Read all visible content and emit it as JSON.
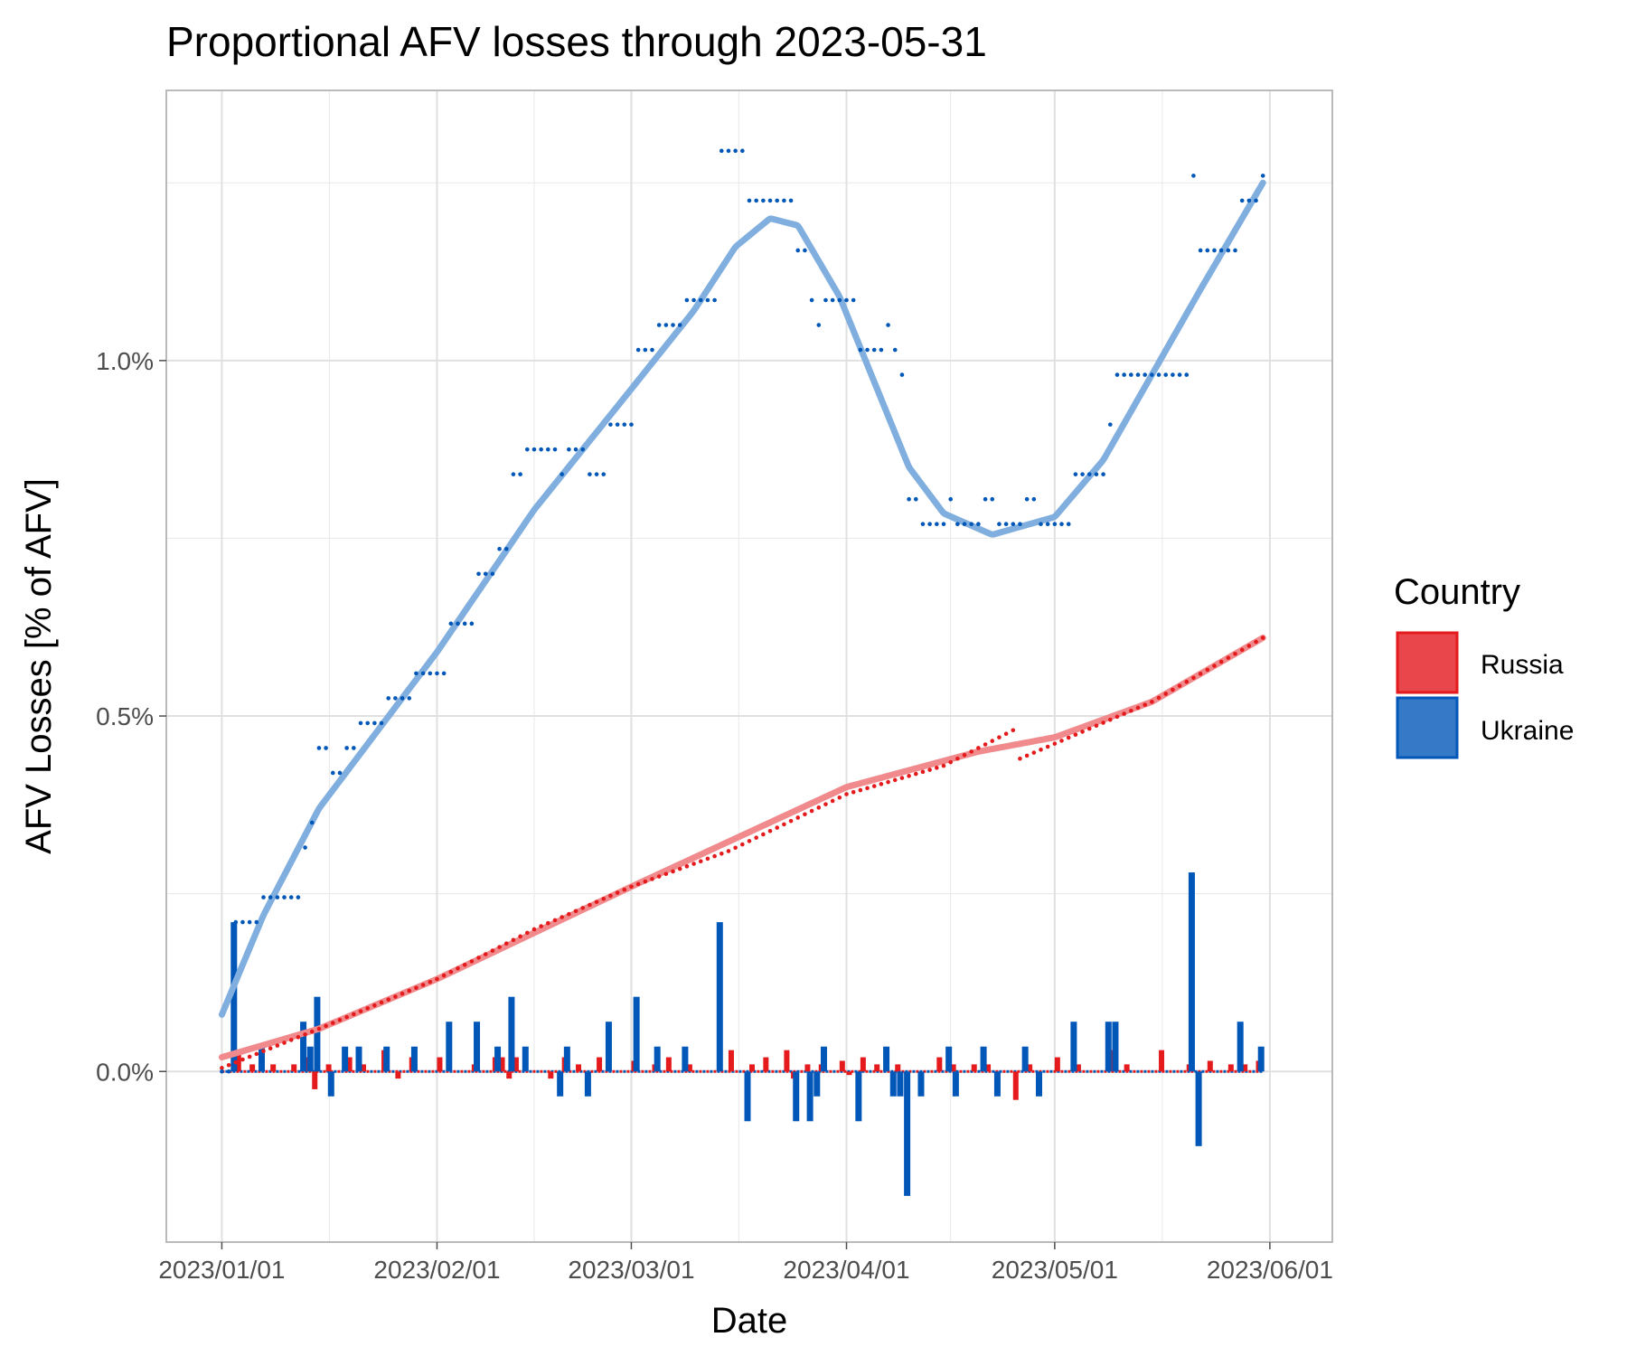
{
  "chart_data": {
    "type": "line",
    "title": "Proportional AFV losses through 2023-05-31",
    "xlabel": "Date",
    "ylabel": "AFV Losses [% of AFV]",
    "x_ticks": [
      "2023/01/01",
      "2023/02/01",
      "2023/03/01",
      "2023/04/01",
      "2023/05/01",
      "2023/06/01"
    ],
    "y_ticks": [
      "0.0%",
      "0.5%",
      "1.0%"
    ],
    "xlim": [
      "2022-12-24",
      "2023-06-10"
    ],
    "ylim": [
      -0.24,
      1.38
    ],
    "grid": true,
    "legend": {
      "title": "Country",
      "position": "right"
    },
    "colors": {
      "Russia_points": "#e41a1c",
      "Russia_smooth": "#f08a8c",
      "Russia_key": "#e8464b",
      "Ukraine_points": "#0057b8",
      "Ukraine_smooth": "#80aede",
      "Ukraine_key": "#3679c7"
    },
    "series": [
      {
        "name": "Russia",
        "cumulative_knots": [
          [
            "2023-01-01",
            0.005
          ],
          [
            "2023-01-15",
            0.06
          ],
          [
            "2023-02-01",
            0.13
          ],
          [
            "2023-02-15",
            0.2
          ],
          [
            "2023-03-01",
            0.26
          ],
          [
            "2023-03-15",
            0.31
          ],
          [
            "2023-04-01",
            0.39
          ],
          [
            "2023-04-15",
            0.43
          ],
          [
            "2023-04-25",
            0.48
          ],
          [
            "2023-04-26",
            0.44
          ],
          [
            "2023-05-15",
            0.52
          ],
          [
            "2023-05-31",
            0.61
          ]
        ],
        "smooth_knots": [
          [
            "2023-01-01",
            0.02
          ],
          [
            "2023-01-15",
            0.06
          ],
          [
            "2023-02-01",
            0.13
          ],
          [
            "2023-03-01",
            0.26
          ],
          [
            "2023-04-01",
            0.4
          ],
          [
            "2023-04-20",
            0.45
          ],
          [
            "2023-05-01",
            0.47
          ],
          [
            "2023-05-15",
            0.52
          ],
          [
            "2023-05-31",
            0.61
          ]
        ],
        "daily_bars": [
          [
            "2023-01-03",
            0.03
          ],
          [
            "2023-01-05",
            0.01
          ],
          [
            "2023-01-08",
            0.01
          ],
          [
            "2023-01-11",
            0.01
          ],
          [
            "2023-01-13",
            0.02
          ],
          [
            "2023-01-14",
            -0.025
          ],
          [
            "2023-01-16",
            0.01
          ],
          [
            "2023-01-19",
            0.02
          ],
          [
            "2023-01-21",
            0.01
          ],
          [
            "2023-01-24",
            0.03
          ],
          [
            "2023-01-26",
            -0.01
          ],
          [
            "2023-01-28",
            0.02
          ],
          [
            "2023-02-01",
            0.02
          ],
          [
            "2023-02-06",
            0.01
          ],
          [
            "2023-02-09",
            0.02
          ],
          [
            "2023-02-10",
            0.02
          ],
          [
            "2023-02-11",
            -0.01
          ],
          [
            "2023-02-12",
            0.02
          ],
          [
            "2023-02-17",
            -0.01
          ],
          [
            "2023-02-19",
            0.02
          ],
          [
            "2023-02-21",
            0.01
          ],
          [
            "2023-02-24",
            0.02
          ],
          [
            "2023-03-01",
            0.015
          ],
          [
            "2023-03-04",
            0.01
          ],
          [
            "2023-03-06",
            0.02
          ],
          [
            "2023-03-09",
            0.01
          ],
          [
            "2023-03-15",
            0.03
          ],
          [
            "2023-03-18",
            0.01
          ],
          [
            "2023-03-20",
            0.02
          ],
          [
            "2023-03-23",
            0.03
          ],
          [
            "2023-03-24",
            -0.01
          ],
          [
            "2023-03-26",
            0.01
          ],
          [
            "2023-03-28",
            0.01
          ],
          [
            "2023-03-31",
            0.015
          ],
          [
            "2023-04-01",
            -0.005
          ],
          [
            "2023-04-03",
            0.02
          ],
          [
            "2023-04-05",
            0.01
          ],
          [
            "2023-04-08",
            0.01
          ],
          [
            "2023-04-14",
            0.02
          ],
          [
            "2023-04-16",
            0.01
          ],
          [
            "2023-04-19",
            0.01
          ],
          [
            "2023-04-21",
            0.01
          ],
          [
            "2023-04-25",
            -0.04
          ],
          [
            "2023-04-27",
            0.01
          ],
          [
            "2023-05-01",
            0.02
          ],
          [
            "2023-05-04",
            0.01
          ],
          [
            "2023-05-09",
            0.03
          ],
          [
            "2023-05-11",
            0.01
          ],
          [
            "2023-05-16",
            0.03
          ],
          [
            "2023-05-20",
            0.01
          ],
          [
            "2023-05-23",
            0.015
          ],
          [
            "2023-05-26",
            0.01
          ],
          [
            "2023-05-28",
            0.01
          ],
          [
            "2023-05-30",
            0.015
          ]
        ]
      },
      {
        "name": "Ukraine",
        "cumulative_knots": [
          [
            "2023-01-01",
            0.0
          ],
          [
            "2023-01-02",
            0.0
          ],
          [
            "2023-01-03",
            0.21
          ],
          [
            "2023-01-06",
            0.21
          ],
          [
            "2023-01-07",
            0.245
          ],
          [
            "2023-01-12",
            0.245
          ],
          [
            "2023-01-13",
            0.315
          ],
          [
            "2023-01-14",
            0.35
          ],
          [
            "2023-01-15",
            0.455
          ],
          [
            "2023-01-16",
            0.455
          ],
          [
            "2023-01-17",
            0.42
          ],
          [
            "2023-01-18",
            0.42
          ],
          [
            "2023-01-19",
            0.455
          ],
          [
            "2023-01-20",
            0.455
          ],
          [
            "2023-01-21",
            0.49
          ],
          [
            "2023-01-24",
            0.49
          ],
          [
            "2023-01-25",
            0.525
          ],
          [
            "2023-01-28",
            0.525
          ],
          [
            "2023-01-29",
            0.56
          ],
          [
            "2023-02-02",
            0.56
          ],
          [
            "2023-02-03",
            0.63
          ],
          [
            "2023-02-06",
            0.63
          ],
          [
            "2023-02-07",
            0.7
          ],
          [
            "2023-02-09",
            0.7
          ],
          [
            "2023-02-10",
            0.735
          ],
          [
            "2023-02-11",
            0.735
          ],
          [
            "2023-02-12",
            0.84
          ],
          [
            "2023-02-13",
            0.84
          ],
          [
            "2023-02-14",
            0.875
          ],
          [
            "2023-02-18",
            0.875
          ],
          [
            "2023-02-19",
            0.84
          ],
          [
            "2023-02-20",
            0.875
          ],
          [
            "2023-02-22",
            0.875
          ],
          [
            "2023-02-23",
            0.84
          ],
          [
            "2023-02-25",
            0.84
          ],
          [
            "2023-02-26",
            0.91
          ],
          [
            "2023-03-01",
            0.91
          ],
          [
            "2023-03-02",
            1.015
          ],
          [
            "2023-03-04",
            1.015
          ],
          [
            "2023-03-05",
            1.05
          ],
          [
            "2023-03-08",
            1.05
          ],
          [
            "2023-03-09",
            1.085
          ],
          [
            "2023-03-13",
            1.085
          ],
          [
            "2023-03-14",
            1.295
          ],
          [
            "2023-03-17",
            1.295
          ],
          [
            "2023-03-18",
            1.225
          ],
          [
            "2023-03-24",
            1.225
          ],
          [
            "2023-03-25",
            1.155
          ],
          [
            "2023-03-26",
            1.155
          ],
          [
            "2023-03-27",
            1.085
          ],
          [
            "2023-03-28",
            1.05
          ],
          [
            "2023-03-29",
            1.085
          ],
          [
            "2023-04-02",
            1.085
          ],
          [
            "2023-04-03",
            1.015
          ],
          [
            "2023-04-06",
            1.015
          ],
          [
            "2023-04-07",
            1.05
          ],
          [
            "2023-04-08",
            1.015
          ],
          [
            "2023-04-09",
            0.98
          ],
          [
            "2023-04-10",
            0.805
          ],
          [
            "2023-04-11",
            0.805
          ],
          [
            "2023-04-12",
            0.77
          ],
          [
            "2023-04-15",
            0.77
          ],
          [
            "2023-04-16",
            0.805
          ],
          [
            "2023-04-17",
            0.77
          ],
          [
            "2023-04-20",
            0.77
          ],
          [
            "2023-04-21",
            0.805
          ],
          [
            "2023-04-22",
            0.805
          ],
          [
            "2023-04-23",
            0.77
          ],
          [
            "2023-04-26",
            0.77
          ],
          [
            "2023-04-27",
            0.805
          ],
          [
            "2023-04-28",
            0.805
          ],
          [
            "2023-04-29",
            0.77
          ],
          [
            "2023-05-03",
            0.77
          ],
          [
            "2023-05-04",
            0.84
          ],
          [
            "2023-05-08",
            0.84
          ],
          [
            "2023-05-09",
            0.91
          ],
          [
            "2023-05-10",
            0.98
          ],
          [
            "2023-05-20",
            0.98
          ],
          [
            "2023-05-21",
            1.26
          ],
          [
            "2023-05-22",
            1.155
          ],
          [
            "2023-05-27",
            1.155
          ],
          [
            "2023-05-28",
            1.225
          ],
          [
            "2023-05-29",
            1.225
          ],
          [
            "2023-05-31",
            1.26
          ]
        ],
        "smooth_knots": [
          [
            "2023-01-01",
            0.08
          ],
          [
            "2023-01-07",
            0.22
          ],
          [
            "2023-01-15",
            0.37
          ],
          [
            "2023-02-01",
            0.59
          ],
          [
            "2023-02-15",
            0.79
          ],
          [
            "2023-03-01",
            0.96
          ],
          [
            "2023-03-10",
            1.07
          ],
          [
            "2023-03-16",
            1.16
          ],
          [
            "2023-03-21",
            1.2
          ],
          [
            "2023-03-25",
            1.19
          ],
          [
            "2023-03-31",
            1.09
          ],
          [
            "2023-04-05",
            0.97
          ],
          [
            "2023-04-10",
            0.85
          ],
          [
            "2023-04-15",
            0.785
          ],
          [
            "2023-04-22",
            0.755
          ],
          [
            "2023-05-01",
            0.78
          ],
          [
            "2023-05-08",
            0.86
          ],
          [
            "2023-05-15",
            0.98
          ],
          [
            "2023-05-22",
            1.1
          ],
          [
            "2023-05-31",
            1.25
          ]
        ],
        "daily_bars": [
          [
            "2023-01-03",
            0.21
          ],
          [
            "2023-01-07",
            0.035
          ],
          [
            "2023-01-13",
            0.07
          ],
          [
            "2023-01-14",
            0.035
          ],
          [
            "2023-01-15",
            0.105
          ],
          [
            "2023-01-17",
            -0.035
          ],
          [
            "2023-01-19",
            0.035
          ],
          [
            "2023-01-21",
            0.035
          ],
          [
            "2023-01-25",
            0.035
          ],
          [
            "2023-01-29",
            0.035
          ],
          [
            "2023-02-03",
            0.07
          ],
          [
            "2023-02-07",
            0.07
          ],
          [
            "2023-02-10",
            0.035
          ],
          [
            "2023-02-12",
            0.105
          ],
          [
            "2023-02-14",
            0.035
          ],
          [
            "2023-02-19",
            -0.035
          ],
          [
            "2023-02-20",
            0.035
          ],
          [
            "2023-02-23",
            -0.035
          ],
          [
            "2023-02-26",
            0.07
          ],
          [
            "2023-03-02",
            0.105
          ],
          [
            "2023-03-05",
            0.035
          ],
          [
            "2023-03-09",
            0.035
          ],
          [
            "2023-03-14",
            0.21
          ],
          [
            "2023-03-18",
            -0.07
          ],
          [
            "2023-03-25",
            -0.07
          ],
          [
            "2023-03-27",
            -0.07
          ],
          [
            "2023-03-28",
            -0.035
          ],
          [
            "2023-03-29",
            0.035
          ],
          [
            "2023-04-03",
            -0.07
          ],
          [
            "2023-04-07",
            0.035
          ],
          [
            "2023-04-08",
            -0.035
          ],
          [
            "2023-04-09",
            -0.035
          ],
          [
            "2023-04-10",
            -0.175
          ],
          [
            "2023-04-12",
            -0.035
          ],
          [
            "2023-04-16",
            0.035
          ],
          [
            "2023-04-17",
            -0.035
          ],
          [
            "2023-04-21",
            0.035
          ],
          [
            "2023-04-23",
            -0.035
          ],
          [
            "2023-04-27",
            0.035
          ],
          [
            "2023-04-29",
            -0.035
          ],
          [
            "2023-05-04",
            0.07
          ],
          [
            "2023-05-09",
            0.07
          ],
          [
            "2023-05-10",
            0.07
          ],
          [
            "2023-05-21",
            0.28
          ],
          [
            "2023-05-22",
            -0.105
          ],
          [
            "2023-05-28",
            0.07
          ],
          [
            "2023-05-31",
            0.035
          ]
        ]
      }
    ]
  }
}
